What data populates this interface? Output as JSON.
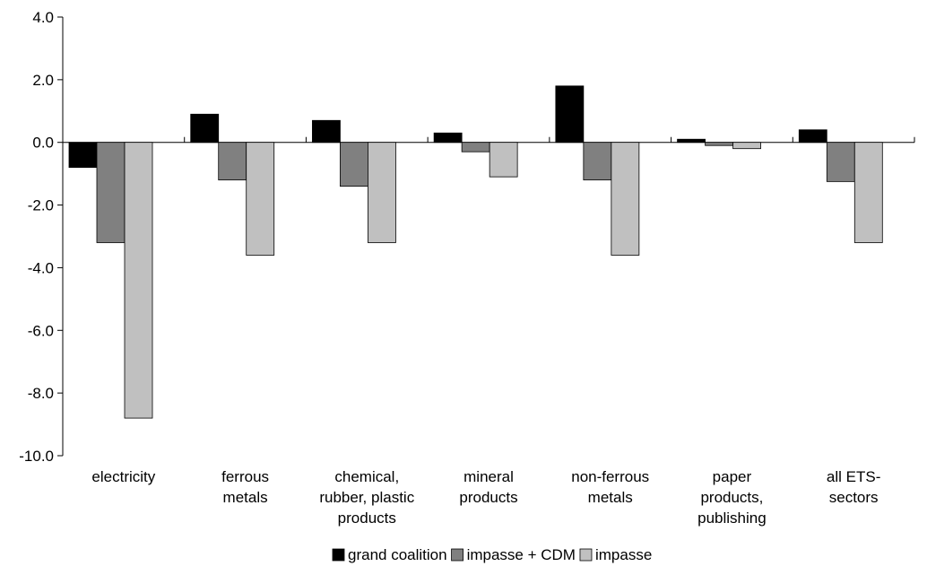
{
  "chart_data": {
    "type": "bar",
    "categories": [
      [
        "electricity"
      ],
      [
        "ferrous",
        "metals"
      ],
      [
        "chemical,",
        "rubber, plastic",
        "products"
      ],
      [
        "mineral",
        "products"
      ],
      [
        "non-ferrous",
        "metals"
      ],
      [
        "paper",
        "products,",
        "publishing"
      ],
      [
        "all ETS-",
        "sectors"
      ]
    ],
    "series": [
      {
        "name": "grand coalition",
        "color": "#000000",
        "values": [
          -0.8,
          0.9,
          0.7,
          0.3,
          1.8,
          0.1,
          0.4
        ]
      },
      {
        "name": "impasse + CDM",
        "color": "#808080",
        "values": [
          -3.2,
          -1.2,
          -1.4,
          -0.3,
          -1.2,
          -0.1,
          -1.25
        ]
      },
      {
        "name": "impasse",
        "color": "#c0c0c0",
        "values": [
          -8.8,
          -3.6,
          -3.2,
          -1.1,
          -3.6,
          -0.2,
          -3.2
        ]
      }
    ],
    "ylim": [
      -10,
      4
    ],
    "yticks": [
      "-10.0",
      "-8.0",
      "-6.0",
      "-4.0",
      "-2.0",
      "0.0",
      "2.0",
      "4.0"
    ],
    "ytick_values": [
      -10,
      -8,
      -6,
      -4,
      -2,
      0,
      2,
      4
    ],
    "title": "",
    "xlabel": "",
    "ylabel": "",
    "grid": false,
    "legend": "bottom"
  }
}
